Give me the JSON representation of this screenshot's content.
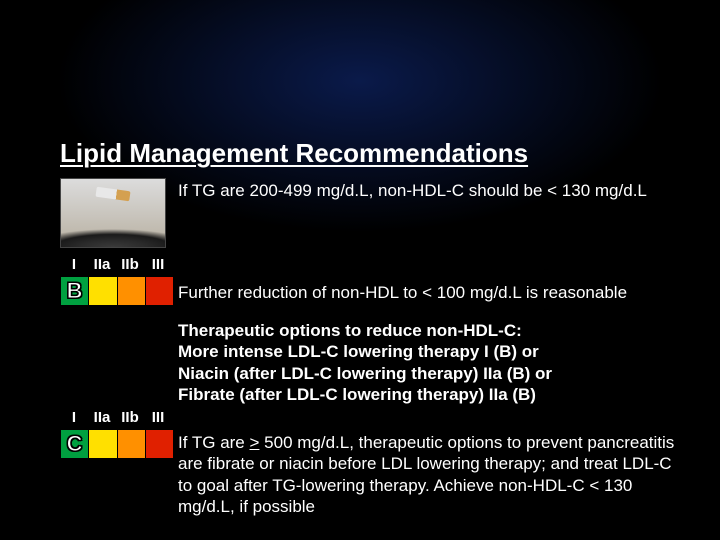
{
  "title": "Lipid Management Recommendations",
  "image": {
    "semantic": "cigarette-ash-photo"
  },
  "text": {
    "line1": "If TG are 200-499 mg/d.L, non-HDL-C should be < 130 mg/d.L",
    "line2": "Further reduction of non-HDL to < 100 mg/d.L is reasonable",
    "therapy_heading": "Therapeutic options to reduce non-HDL-C:",
    "therapy_l1": "More intense LDL-C lowering therapy I (B) or",
    "therapy_l2": "Niacin (after LDL-C lowering therapy) IIa (B) or",
    "therapy_l3": "Fibrate (after LDL-C lowering therapy) IIa (B)",
    "line4_a": "If TG are ",
    "line4_b": ">",
    "line4_c": " 500 mg/d.L, therapeutic options to prevent pancreatitis are fibrate or niacin before LDL lowering therapy; and treat LDL-C to goal after TG-lowering therapy. Achieve non-HDL-C < 130 mg/d.L, if possible"
  },
  "class_labels": [
    "I",
    "IIa",
    "IIb",
    "III"
  ],
  "grids": [
    {
      "colors": [
        "#00a040",
        "#ffe000",
        "#ff9000",
        "#e02000"
      ],
      "letter": "B",
      "letter_col": 0
    },
    {
      "colors": [
        "#00a040",
        "#ffe000",
        "#ff9000",
        "#e02000"
      ],
      "letter": "C",
      "letter_col": 0
    }
  ],
  "style": {
    "background_top": "#0a1a4a",
    "background": "#000000",
    "text_color": "#ffffff",
    "title_fontsize": 26,
    "body_fontsize": 17,
    "label_fontsize": 15,
    "font_family": "Arial",
    "slide_width": 720,
    "slide_height": 540
  }
}
